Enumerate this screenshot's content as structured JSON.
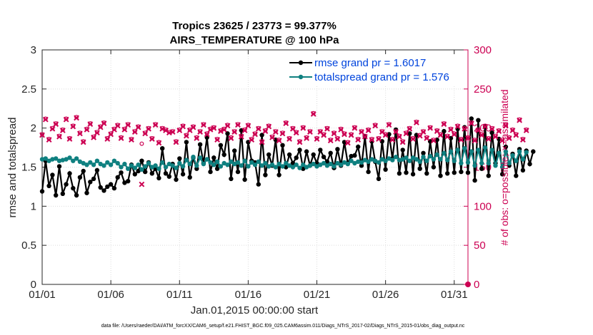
{
  "chart_data": {
    "type": "line",
    "title": "Tropics 23625 / 23773 = 99.377%",
    "subtitle": "AIRS_TEMPERATURE @ 100 hPa",
    "xlabel": "Jan.01,2015 00:00:00 start",
    "ylabel": "rmse and totalspread",
    "y2label": "# of obs: o=possible; ×=assimilated",
    "xlim": [
      1,
      32
    ],
    "ylim": [
      0,
      3
    ],
    "y2lim": [
      0,
      300
    ],
    "x_ticks": [
      1,
      6,
      11,
      16,
      21,
      26,
      31
    ],
    "x_tick_labels": [
      "01/01",
      "01/06",
      "01/11",
      "01/16",
      "01/21",
      "01/26",
      "01/31"
    ],
    "y_ticks": [
      0,
      0.5,
      1,
      1.5,
      2,
      2.5,
      3
    ],
    "y_tick_labels": [
      "0",
      "0.5",
      "1",
      "1.5",
      "2",
      "2.5",
      "3"
    ],
    "y2_ticks": [
      0,
      50,
      100,
      150,
      200,
      250,
      300
    ],
    "y2_tick_labels": [
      "0",
      "50",
      "100",
      "150",
      "200",
      "250",
      "300"
    ],
    "grid": true,
    "legend_position": "top-right",
    "legend": [
      {
        "label": "rmse grand pr = 1.6017",
        "color": "#000000"
      },
      {
        "label": "totalspread grand pr = 1.576",
        "color": "#0f8080"
      }
    ],
    "footnote": "data file: /Users/raeder/DAI/ATM_forcXX/CAM6_setup/f.e21.FHIST_BGC.f09_025.CAM6assim.011/Diags_NTrS_2017-02/Diags_NTrS_2015-01/obs_diag_output.nc",
    "series": [
      {
        "name": "rmse",
        "color": "#000000",
        "x_start": 1.0,
        "x_step": 0.25,
        "values": [
          1.19,
          1.58,
          1.26,
          1.4,
          1.14,
          1.51,
          1.16,
          1.28,
          1.42,
          1.23,
          1.14,
          1.37,
          1.45,
          1.17,
          1.31,
          1.35,
          1.46,
          1.24,
          1.2,
          1.25,
          1.28,
          1.23,
          1.37,
          1.43,
          1.3,
          1.32,
          1.53,
          1.41,
          1.45,
          1.58,
          1.44,
          1.56,
          1.42,
          1.48,
          1.36,
          1.74,
          1.42,
          1.38,
          1.54,
          1.34,
          1.61,
          1.41,
          1.82,
          1.37,
          1.62,
          1.48,
          1.79,
          1.55,
          1.88,
          1.44,
          1.62,
          1.48,
          1.78,
          1.66,
          1.93,
          1.35,
          1.71,
          1.44,
          1.97,
          1.34,
          1.82,
          1.58,
          1.56,
          1.28,
          1.91,
          1.4,
          1.66,
          1.52,
          1.85,
          1.4,
          1.78,
          1.5,
          1.66,
          1.55,
          1.62,
          1.72,
          1.48,
          1.7,
          1.52,
          1.66,
          1.55,
          1.72,
          1.63,
          1.57,
          1.68,
          1.49,
          1.73,
          1.52,
          1.82,
          1.55,
          1.64,
          1.65,
          1.76,
          1.52,
          1.89,
          1.44,
          1.83,
          1.57,
          1.35,
          1.83,
          1.47,
          1.92,
          1.61,
          1.98,
          1.42,
          1.72,
          1.43,
          1.93,
          1.41,
          1.91,
          1.48,
          1.68,
          1.42,
          1.83,
          1.5,
          1.85,
          1.39,
          1.96,
          1.42,
          1.87,
          1.43,
          1.99,
          1.44,
          2.01,
          1.43,
          2.12,
          1.33,
          2.1,
          1.48,
          2.02,
          1.39,
          1.94,
          1.55,
          1.86,
          1.41,
          1.76,
          1.52,
          1.67,
          1.39,
          1.73,
          1.46,
          1.71,
          1.54,
          1.7
        ]
      },
      {
        "name": "totalspread",
        "color": "#0f8080",
        "x_start": 1.0,
        "x_step": 0.25,
        "values": [
          1.6,
          1.61,
          1.58,
          1.6,
          1.61,
          1.58,
          1.59,
          1.6,
          1.62,
          1.58,
          1.61,
          1.57,
          1.55,
          1.53,
          1.56,
          1.53,
          1.58,
          1.54,
          1.52,
          1.56,
          1.53,
          1.58,
          1.55,
          1.5,
          1.54,
          1.48,
          1.52,
          1.49,
          1.53,
          1.47,
          1.51,
          1.55,
          1.5,
          1.52,
          1.48,
          1.56,
          1.5,
          1.54,
          1.52,
          1.49,
          1.55,
          1.51,
          1.59,
          1.54,
          1.63,
          1.52,
          1.62,
          1.54,
          1.6,
          1.56,
          1.53,
          1.57,
          1.51,
          1.55,
          1.53,
          1.57,
          1.54,
          1.56,
          1.52,
          1.58,
          1.51,
          1.56,
          1.53,
          1.57,
          1.52,
          1.55,
          1.51,
          1.53,
          1.5,
          1.54,
          1.51,
          1.55,
          1.52,
          1.5,
          1.53,
          1.49,
          1.53,
          1.5,
          1.52,
          1.54,
          1.51,
          1.53,
          1.55,
          1.52,
          1.54,
          1.51,
          1.55,
          1.53,
          1.56,
          1.54,
          1.58,
          1.55,
          1.57,
          1.56,
          1.59,
          1.57,
          1.6,
          1.58,
          1.56,
          1.6,
          1.58,
          1.61,
          1.59,
          1.63,
          1.59,
          1.6,
          1.62,
          1.58,
          1.62,
          1.6,
          1.57,
          1.63,
          1.58,
          1.64,
          1.6,
          1.66,
          1.6,
          1.68,
          1.59,
          1.7,
          1.58,
          1.72,
          1.55,
          1.74,
          1.56,
          1.7,
          1.52,
          1.72,
          1.55,
          1.75,
          1.55,
          1.72,
          1.52,
          1.68,
          1.5,
          1.7,
          1.55,
          1.65,
          1.58,
          1.7,
          1.6,
          1.69
        ]
      },
      {
        "name": "obs_possible",
        "axis": "right",
        "marker": "circle",
        "color": "#cc0052",
        "x_start": 1.0,
        "x_step": 0.25,
        "values": [
          192,
          212,
          186,
          200,
          206,
          190,
          198,
          212,
          187,
          203,
          214,
          194,
          183,
          199,
          206,
          189,
          195,
          202,
          207,
          187,
          193,
          199,
          204,
          188,
          199,
          205,
          186,
          196,
          202,
          180,
          194,
          200,
          187,
          205,
          182,
          200,
          198,
          195,
          196,
          183,
          198,
          203,
          191,
          198,
          202,
          188,
          196,
          205,
          193,
          199,
          201,
          186,
          197,
          199,
          204,
          188,
          196,
          205,
          190,
          198,
          204,
          186,
          193,
          200,
          183,
          197,
          203,
          189,
          196,
          185,
          194,
          207,
          187,
          200,
          195,
          183,
          201,
          188,
          196,
          219,
          187,
          196,
          192,
          200,
          185,
          194,
          187,
          199,
          193,
          182,
          192,
          201,
          186,
          196,
          190,
          198,
          186,
          204,
          187,
          196,
          192,
          205,
          186,
          196,
          190,
          183,
          194,
          200,
          187,
          208,
          191,
          196,
          188,
          201,
          185,
          197,
          192,
          206,
          190,
          199,
          193,
          203,
          186,
          200,
          188,
          207,
          185,
          198,
          192,
          203,
          187,
          200,
          190,
          197,
          185,
          204,
          188,
          198,
          192,
          211,
          186,
          198
        ]
      },
      {
        "name": "obs_assimilated",
        "axis": "right",
        "marker": "x",
        "color": "#cc0052",
        "x_start": 1.0,
        "x_step": 0.25,
        "values": [
          191,
          211,
          185,
          199,
          205,
          189,
          197,
          211,
          186,
          202,
          213,
          193,
          182,
          198,
          205,
          188,
          194,
          201,
          206,
          186,
          192,
          198,
          203,
          187,
          198,
          204,
          185,
          195,
          201,
          128,
          193,
          199,
          186,
          204,
          181,
          199,
          197,
          194,
          195,
          182,
          197,
          202,
          190,
          197,
          201,
          187,
          195,
          204,
          192,
          198,
          200,
          185,
          196,
          198,
          203,
          187,
          195,
          204,
          189,
          197,
          203,
          185,
          192,
          199,
          182,
          196,
          202,
          188,
          195,
          184,
          193,
          206,
          186,
          199,
          194,
          182,
          200,
          187,
          195,
          218,
          186,
          195,
          191,
          199,
          184,
          193,
          186,
          198,
          192,
          181,
          191,
          200,
          185,
          195,
          189,
          197,
          185,
          203,
          186,
          195,
          191,
          204,
          185,
          195,
          189,
          182,
          193,
          199,
          186,
          207,
          190,
          195,
          187,
          200,
          184,
          196,
          191,
          205,
          189,
          198,
          192,
          202,
          185,
          199,
          187,
          206,
          184,
          197,
          191,
          202,
          186,
          199,
          189,
          196,
          184,
          203,
          187,
          197,
          191,
          210,
          185,
          197
        ]
      }
    ]
  }
}
